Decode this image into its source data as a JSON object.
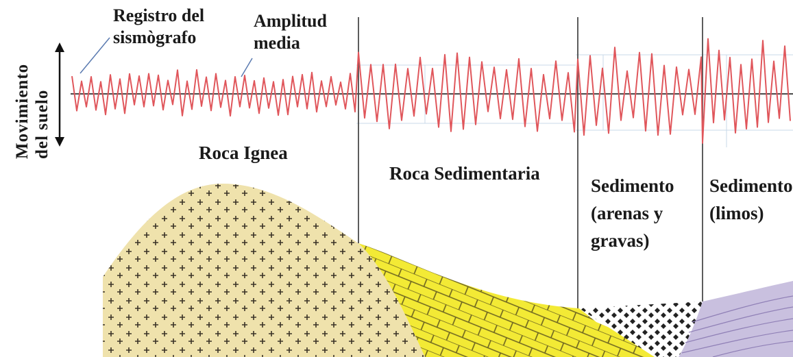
{
  "labels": {
    "ground_motion_line1": "Movimiento",
    "ground_motion_line2": "del suelo",
    "seismograph_record_line1": "Registro del",
    "seismograph_record_line2": "sismògrafo",
    "mean_amplitude_line1": "Amplitud",
    "mean_amplitude_line2": "media",
    "igneous_rock": "Roca Ignea",
    "sedimentary_rock": "Roca Sedimentaria",
    "sediment_sand_line1": "Sedimento",
    "sediment_sand_line2": "(arenas y",
    "sediment_sand_line3": "gravas)",
    "sediment_silt_line1": "Sedimento",
    "sediment_silt_line2": "(limos)"
  },
  "colors": {
    "seismogram": "#e0565b",
    "baseline": "#4a4a4a",
    "divider": "#4a4a4a",
    "igneous_fill": "#efe2ac",
    "sedimentary_fill": "#f3ea35",
    "sand_gravel_fill": "#5b5b6b",
    "silt_fill": "#c9c0df"
  }
}
